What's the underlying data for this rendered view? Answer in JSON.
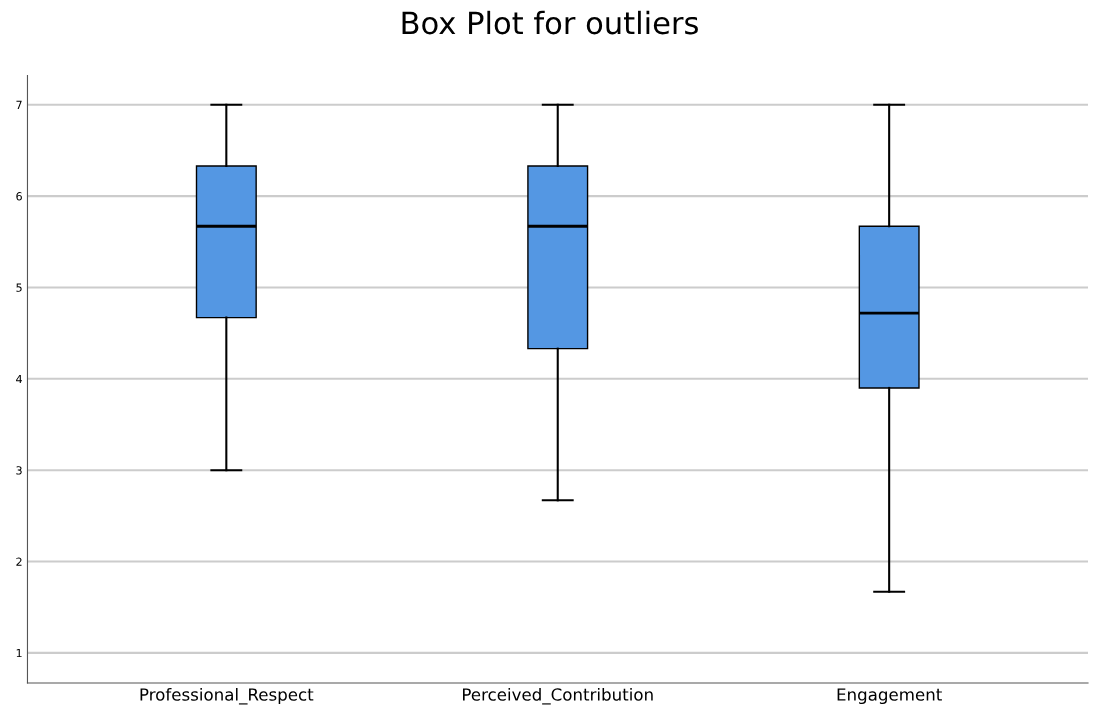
{
  "chart_data": {
    "type": "box",
    "title": "Box Plot for outliers",
    "categories": [
      "Professional_Respect",
      "Perceived_Contribution",
      "Engagement"
    ],
    "boxes": [
      {
        "low": 3,
        "q1": 4.67,
        "median": 5.67,
        "q3": 6.33,
        "high": 7
      },
      {
        "low": 2.67,
        "q1": 4.33,
        "median": 5.67,
        "q3": 6.33,
        "high": 7
      },
      {
        "low": 1.67,
        "q1": 3.9,
        "median": 4.72,
        "q3": 5.67,
        "high": 7
      }
    ],
    "color": "#5497e3",
    "ylim": [
      0.67,
      7.32
    ],
    "yticks": [
      1,
      2,
      3,
      4,
      5,
      6,
      7
    ],
    "grid": "y"
  }
}
